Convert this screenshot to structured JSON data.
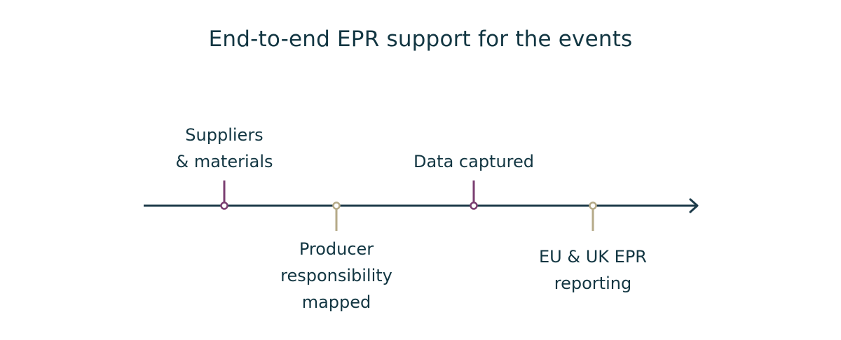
{
  "title": "End-to-end EPR support for the events",
  "colors": {
    "axis": "#1d3b4a",
    "primary_marker": "#7b3f72",
    "secondary_marker": "#b5aa88",
    "text": "#123642"
  },
  "milestones": [
    {
      "label": "Suppliers\n& materials",
      "side": "above",
      "color": "#7b3f72"
    },
    {
      "label": "Producer\nresponsibility\nmapped",
      "side": "below",
      "color": "#b5aa88"
    },
    {
      "label": "Data captured",
      "side": "above",
      "color": "#7b3f72"
    },
    {
      "label": "EU & UK EPR\nreporting",
      "side": "below",
      "color": "#b5aa88"
    }
  ]
}
